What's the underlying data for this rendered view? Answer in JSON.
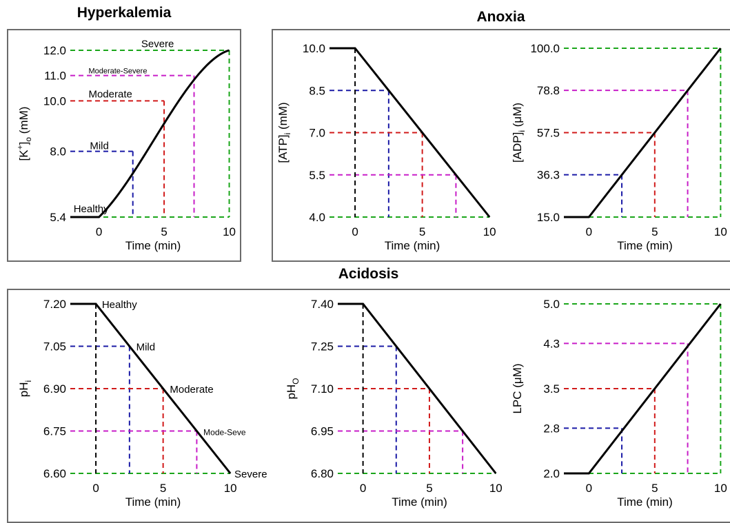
{
  "groups": {
    "hyperkalemia": "Hyperkalemia",
    "anoxia": "Anoxia",
    "acidosis": "Acidosis"
  },
  "colors": {
    "mild": "#1a1aa6",
    "moderate": "#d11a1a",
    "moderate_severe": "#c81ec8",
    "severe": "#1aa61a",
    "healthy": "#000000",
    "curve": "#000000"
  },
  "chart_data": [
    {
      "id": "k",
      "type": "line",
      "group": "Hyperkalemia",
      "xlabel": "Time (min)",
      "ylabel_main": "[K",
      "ylabel_sup": "+",
      "ylabel_close": "]",
      "ylabel_sub": "o",
      "ylabel_tail": " (mM)",
      "xlim": [
        -2.2,
        10.5
      ],
      "ylim": [
        5.4,
        12.0
      ],
      "x_ticks": [
        0,
        5,
        10
      ],
      "y_ticks": [
        5.4,
        8.0,
        10.0,
        11.0,
        12.0
      ],
      "y_tick_labels": [
        "5.4",
        "8.0",
        "10.0",
        "11.0",
        "12.0"
      ],
      "curve_type": "sigmoid",
      "curve": {
        "x0": 0,
        "x1": 10,
        "y0": 5.4,
        "y1": 12.0
      },
      "levels": [
        {
          "x": 2.6,
          "y": 8.0,
          "color": "mild"
        },
        {
          "x": 5.0,
          "y": 10.0,
          "color": "moderate"
        },
        {
          "x": 7.3,
          "y": 11.0,
          "color": "moderate_severe"
        },
        {
          "x": 10.0,
          "y": 12.0,
          "color": "severe"
        }
      ],
      "baseline_color": "severe",
      "annotations": [
        {
          "text": "Severe",
          "x": 4.5,
          "y": 12.28,
          "size": 15,
          "anchor": "middle"
        },
        {
          "text": "Moderate-Severe",
          "x": -0.8,
          "y": 11.25,
          "size": 11,
          "anchor": "start"
        },
        {
          "text": "Moderate",
          "x": -0.8,
          "y": 10.3,
          "size": 15,
          "anchor": "start"
        },
        {
          "text": "Mild",
          "x": -0.7,
          "y": 8.25,
          "size": 15,
          "anchor": "start"
        },
        {
          "text": "Healthy",
          "x": -1.95,
          "y": 5.75,
          "size": 15,
          "anchor": "start"
        }
      ]
    },
    {
      "id": "atp",
      "type": "line",
      "group": "Anoxia",
      "xlabel": "Time (min)",
      "ylabel_main": "[ATP]",
      "ylabel_sub": "i",
      "ylabel_tail": " (mM)",
      "xlim": [
        -1.9,
        10.4
      ],
      "ylim": [
        4.0,
        10.0
      ],
      "x_ticks": [
        0,
        5,
        10
      ],
      "y_ticks": [
        4.0,
        5.5,
        7.0,
        8.5,
        10.0
      ],
      "y_tick_labels": [
        "4.0",
        "5.5",
        "7.0",
        "8.5",
        "10.0"
      ],
      "curve_type": "linear",
      "curve": {
        "x0": 0,
        "x1": 10,
        "y0": 10.0,
        "y1": 4.0
      },
      "levels": [
        {
          "x": 2.5,
          "y": 8.5,
          "color": "mild"
        },
        {
          "x": 5.0,
          "y": 7.0,
          "color": "moderate"
        },
        {
          "x": 7.5,
          "y": 5.5,
          "color": "moderate_severe"
        }
      ],
      "healthy_line": {
        "x": 0,
        "y": 10.0
      },
      "baseline_color": "severe",
      "annotations": []
    },
    {
      "id": "adp",
      "type": "line",
      "group": "Anoxia",
      "xlabel": "Time (min)",
      "ylabel_main": "[ADP]",
      "ylabel_sub": "i",
      "ylabel_tail": " (μM)",
      "xlim": [
        -1.9,
        10.4
      ],
      "ylim": [
        15.0,
        100.0
      ],
      "x_ticks": [
        0,
        5,
        10
      ],
      "y_ticks": [
        15.0,
        36.3,
        57.5,
        78.8,
        100.0
      ],
      "y_tick_labels": [
        "15.0",
        "36.3",
        "57.5",
        "78.8",
        "100.0"
      ],
      "curve_type": "linear",
      "curve": {
        "x0": 0,
        "x1": 10,
        "y0": 15.0,
        "y1": 100.0
      },
      "levels": [
        {
          "x": 2.5,
          "y": 36.3,
          "color": "mild"
        },
        {
          "x": 5.0,
          "y": 57.5,
          "color": "moderate"
        },
        {
          "x": 7.5,
          "y": 78.8,
          "color": "moderate_severe"
        },
        {
          "x": 10.0,
          "y": 100.0,
          "color": "severe"
        }
      ],
      "baseline_color": "severe",
      "annotations": []
    },
    {
      "id": "phi",
      "type": "line",
      "group": "Acidosis",
      "xlabel": "Time (min)",
      "ylabel_main": "pH",
      "ylabel_sub": "i",
      "ylabel_tail": "",
      "xlim": [
        -1.9,
        10.4
      ],
      "ylim": [
        6.6,
        7.2
      ],
      "x_ticks": [
        0,
        5,
        10
      ],
      "y_ticks": [
        6.6,
        6.75,
        6.9,
        7.05,
        7.2
      ],
      "y_tick_labels": [
        "6.60",
        "6.75",
        "6.90",
        "7.05",
        "7.20"
      ],
      "curve_type": "linear",
      "curve": {
        "x0": 0,
        "x1": 10,
        "y0": 7.2,
        "y1": 6.6
      },
      "levels": [
        {
          "x": 2.5,
          "y": 7.05,
          "color": "mild"
        },
        {
          "x": 5.0,
          "y": 6.9,
          "color": "moderate"
        },
        {
          "x": 7.5,
          "y": 6.75,
          "color": "moderate_severe"
        }
      ],
      "healthy_line": {
        "x": 0,
        "y": 7.2
      },
      "baseline_color": "severe",
      "annotations": [
        {
          "text": "Healthy",
          "x": 0.45,
          "y": 7.2,
          "size": 15,
          "anchor": "start"
        },
        {
          "text": "Mild",
          "x": 3.0,
          "y": 7.05,
          "size": 15,
          "anchor": "start"
        },
        {
          "text": "Moderate",
          "x": 5.5,
          "y": 6.9,
          "size": 15,
          "anchor": "start"
        },
        {
          "text": "Mode-Seve",
          "x": 8.0,
          "y": 6.75,
          "size": 12,
          "anchor": "start"
        },
        {
          "text": "Severe",
          "x": 10.3,
          "y": 6.6,
          "size": 15,
          "anchor": "start"
        }
      ]
    },
    {
      "id": "pho",
      "type": "line",
      "group": "Acidosis",
      "xlabel": "Time (min)",
      "ylabel_main": "pH",
      "ylabel_sub": "O",
      "ylabel_tail": "",
      "xlim": [
        -1.9,
        10.4
      ],
      "ylim": [
        6.8,
        7.4
      ],
      "x_ticks": [
        0,
        5,
        10
      ],
      "y_ticks": [
        6.8,
        6.95,
        7.1,
        7.25,
        7.4
      ],
      "y_tick_labels": [
        "6.80",
        "6.95",
        "7.10",
        "7.25",
        "7.40"
      ],
      "curve_type": "linear",
      "curve": {
        "x0": 0,
        "x1": 10,
        "y0": 7.4,
        "y1": 6.8
      },
      "levels": [
        {
          "x": 2.5,
          "y": 7.25,
          "color": "mild"
        },
        {
          "x": 5.0,
          "y": 7.1,
          "color": "moderate"
        },
        {
          "x": 7.5,
          "y": 6.95,
          "color": "moderate_severe"
        }
      ],
      "healthy_line": {
        "x": 0,
        "y": 7.4
      },
      "baseline_color": "severe",
      "annotations": []
    },
    {
      "id": "lpc",
      "type": "line",
      "group": "Acidosis",
      "xlabel": "Time (min)",
      "ylabel_main": "LPC (μM)",
      "ylabel_sub": "",
      "ylabel_tail": "",
      "xlim": [
        -1.9,
        10.4
      ],
      "ylim": [
        2.0,
        5.0
      ],
      "x_ticks": [
        0,
        5,
        10
      ],
      "y_ticks": [
        2.0,
        2.8,
        3.5,
        4.3,
        5.0
      ],
      "y_tick_labels": [
        "2.0",
        "2.8",
        "3.5",
        "4.3",
        "5.0"
      ],
      "curve_type": "linear",
      "curve": {
        "x0": 0,
        "x1": 10,
        "y0": 2.0,
        "y1": 5.0
      },
      "levels": [
        {
          "x": 2.5,
          "y": 2.8,
          "color": "mild"
        },
        {
          "x": 5.0,
          "y": 3.5,
          "color": "moderate"
        },
        {
          "x": 7.5,
          "y": 4.3,
          "color": "moderate_severe"
        },
        {
          "x": 10.0,
          "y": 5.0,
          "color": "severe"
        }
      ],
      "baseline_color": "severe",
      "annotations": []
    }
  ]
}
